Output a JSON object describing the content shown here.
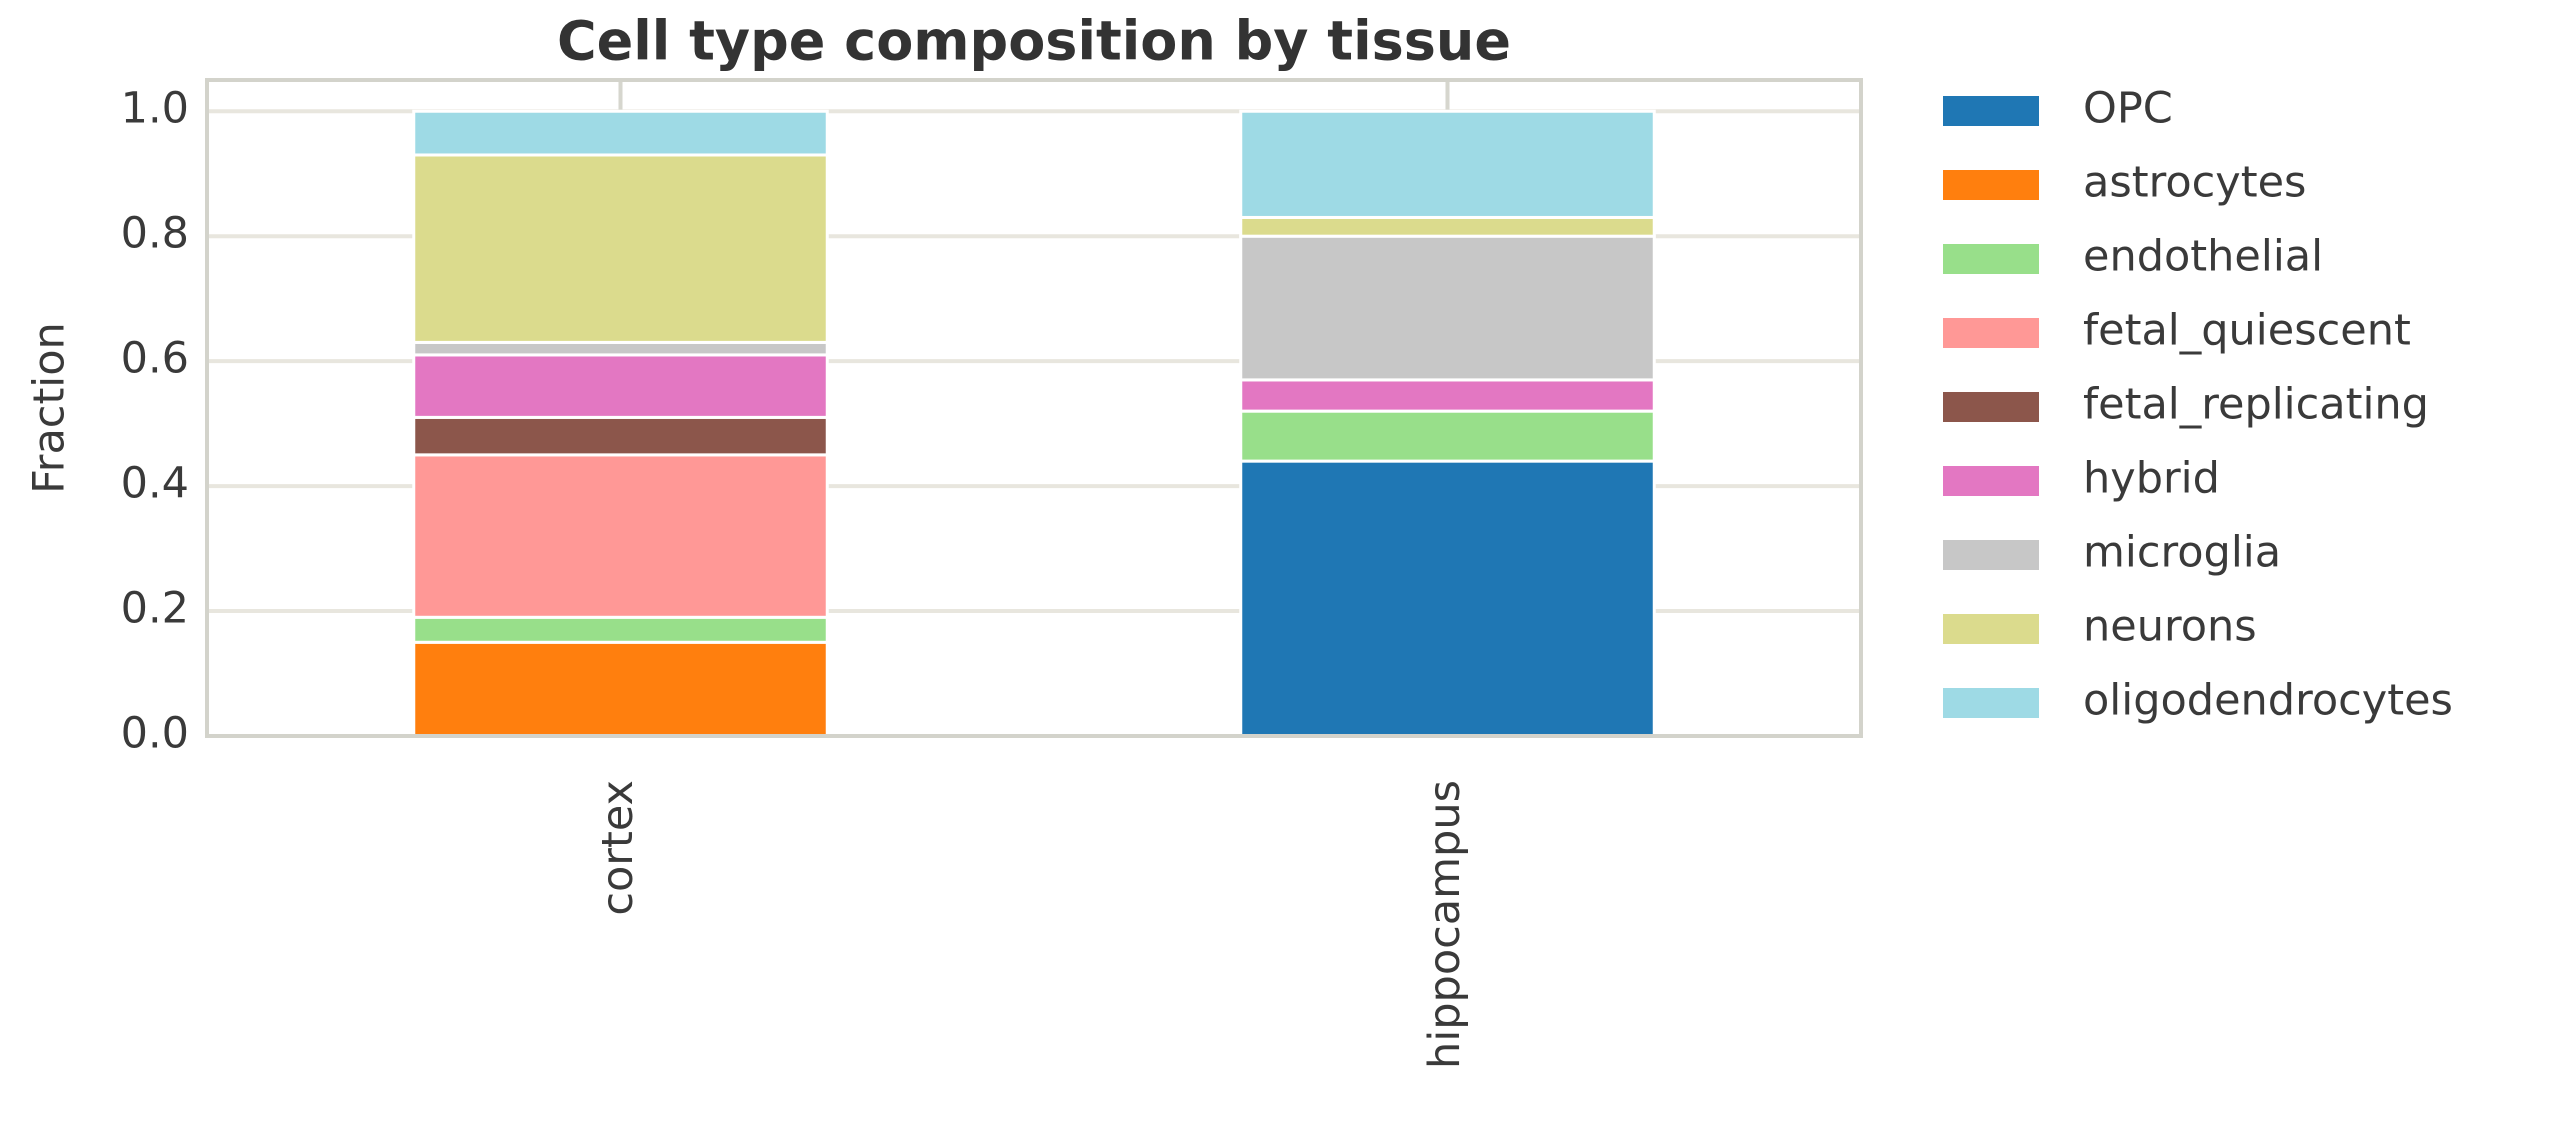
{
  "chart_data": {
    "type": "stacked_bar",
    "title": "Cell type composition by tissue",
    "y_label": "Fraction",
    "categories": [
      "cortex",
      "hippocampus"
    ],
    "series": [
      {
        "name": "OPC",
        "color": "#1f77b4",
        "values": [
          0,
          0.44
        ]
      },
      {
        "name": "astrocytes",
        "color": "#ff7f0e",
        "values": [
          0.15,
          0
        ]
      },
      {
        "name": "endothelial",
        "color": "#98df8a",
        "values": [
          0.04,
          0.08
        ]
      },
      {
        "name": "fetal_quiescent",
        "color": "#ff9896",
        "values": [
          0.26,
          0
        ]
      },
      {
        "name": "fetal_replicating",
        "color": "#8c564b",
        "values": [
          0.06,
          0
        ]
      },
      {
        "name": "hybrid",
        "color": "#e377c2",
        "values": [
          0.1,
          0.05
        ]
      },
      {
        "name": "microglia",
        "color": "#c7c7c7",
        "values": [
          0.02,
          0.23
        ]
      },
      {
        "name": "neurons",
        "color": "#dbdb8d",
        "values": [
          0.3,
          0.03
        ]
      },
      {
        "name": "oligodendrocytes",
        "color": "#9edae5",
        "values": [
          0.07,
          0.17
        ]
      }
    ],
    "ylim": [
      0,
      1.05
    ],
    "yticks": [
      {
        "value": 0,
        "label": "0.0"
      },
      {
        "value": 0.2,
        "label": "0.2"
      },
      {
        "value": 0.4,
        "label": "0.4"
      },
      {
        "value": 0.6,
        "label": "0.6"
      },
      {
        "value": 0.8,
        "label": "0.8"
      },
      {
        "value": 1,
        "label": "1.0"
      }
    ],
    "grid": true
  }
}
